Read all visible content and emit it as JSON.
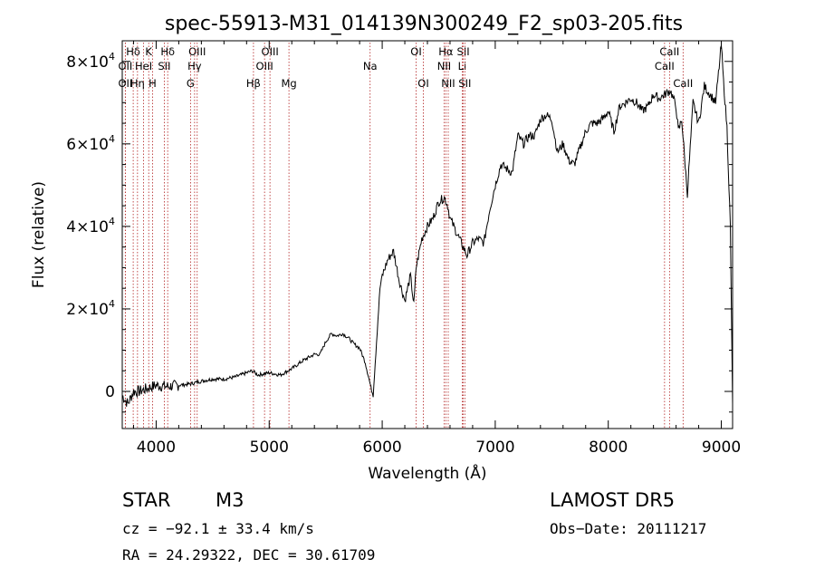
{
  "chart_data": {
    "type": "line",
    "title": "spec-55913-M31_014139N300249_F2_sp03-205.fits",
    "xlabel": "Wavelength (Å)",
    "ylabel": "Flux (relative)",
    "xlim": [
      3700,
      9100
    ],
    "ylim": [
      -9000,
      85000
    ],
    "x_ticks": [
      4000,
      5000,
      6000,
      7000,
      8000,
      9000
    ],
    "x_tick_labels": [
      "4000",
      "5000",
      "6000",
      "7000",
      "8000",
      "9000"
    ],
    "y_ticks": [
      0,
      20000,
      40000,
      60000,
      80000
    ],
    "y_tick_bases": [
      "0",
      "2×10",
      "4×10",
      "6×10",
      "8×10"
    ],
    "y_tick_exponents": [
      "",
      "4",
      "4",
      "4",
      "4"
    ],
    "grid": false,
    "series": [
      {
        "x": [
          3700,
          3750,
          3800,
          3850,
          3900,
          3950,
          4000,
          4100,
          4200,
          4300,
          4400,
          4500,
          4600,
          4700,
          4800,
          4850,
          4900,
          5000,
          5100,
          5200,
          5300,
          5400,
          5450,
          5500,
          5550,
          5600,
          5650,
          5700,
          5750,
          5800,
          5850,
          5900,
          5920,
          5950,
          5980,
          6000,
          6050,
          6100,
          6150,
          6200,
          6250,
          6280,
          6300,
          6350,
          6400,
          6450,
          6500,
          6550,
          6580,
          6600,
          6650,
          6700,
          6750,
          6800,
          6850,
          6900,
          6950,
          7000,
          7050,
          7100,
          7150,
          7200,
          7250,
          7300,
          7350,
          7400,
          7450,
          7500,
          7550,
          7600,
          7650,
          7700,
          7750,
          7800,
          7850,
          7900,
          7950,
          8000,
          8050,
          8100,
          8150,
          8200,
          8250,
          8300,
          8350,
          8400,
          8450,
          8500,
          8550,
          8600,
          8620,
          8650,
          8680,
          8700,
          8750,
          8800,
          8850,
          8900,
          8950,
          9000,
          9020,
          9050,
          9080,
          9100
        ],
        "y": [
          -1000,
          -3000,
          0,
          0,
          500,
          1000,
          1500,
          1200,
          1500,
          1800,
          2500,
          3000,
          3000,
          3500,
          4500,
          5000,
          4000,
          4500,
          4000,
          5500,
          7500,
          9000,
          9000,
          12000,
          14000,
          13500,
          14000,
          13000,
          11500,
          10500,
          7000,
          1000,
          -1000,
          12000,
          25000,
          28000,
          32000,
          34000,
          27000,
          22000,
          28000,
          21000,
          30000,
          37000,
          40000,
          42000,
          46000,
          47000,
          45000,
          42000,
          39000,
          36000,
          33000,
          36000,
          37000,
          36000,
          44000,
          50000,
          55000,
          54000,
          53000,
          62000,
          60000,
          62000,
          62000,
          66000,
          67000,
          66000,
          58000,
          60000,
          56000,
          55000,
          59000,
          63000,
          65000,
          65000,
          66000,
          68000,
          63000,
          69000,
          70000,
          71000,
          70000,
          68000,
          69000,
          72000,
          71000,
          72000,
          73000,
          69000,
          63000,
          66000,
          55000,
          48000,
          70000,
          65000,
          74000,
          72000,
          70000,
          84000,
          75000,
          64000,
          40000,
          -3000
        ]
      }
    ],
    "spectral_lines": [
      {
        "label": "Hδ",
        "wl": 3797,
        "row": 1
      },
      {
        "label": "OII",
        "wl": 3727,
        "row": 2
      },
      {
        "label": "OII",
        "wl": 3727,
        "row": 3
      },
      {
        "label": "K",
        "wl": 3934,
        "row": 1
      },
      {
        "label": "HeI",
        "wl": 3889,
        "row": 2
      },
      {
        "label": "Hη",
        "wl": 3835,
        "row": 3
      },
      {
        "label": "Hδ",
        "wl": 4102,
        "row": 1
      },
      {
        "label": "SII",
        "wl": 4072,
        "row": 2
      },
      {
        "label": "H",
        "wl": 3968,
        "row": 3
      },
      {
        "label": "OIII",
        "wl": 4363,
        "row": 1
      },
      {
        "label": "Hγ",
        "wl": 4340,
        "row": 2
      },
      {
        "label": "G",
        "wl": 4304,
        "row": 3
      },
      {
        "label": "OIII",
        "wl": 5007,
        "row": 1
      },
      {
        "label": "OIII",
        "wl": 4959,
        "row": 2
      },
      {
        "label": "Hβ",
        "wl": 4861,
        "row": 3
      },
      {
        "label": "Mg",
        "wl": 5175,
        "row": 3
      },
      {
        "label": "Na",
        "wl": 5893,
        "row": 2
      },
      {
        "label": "OI",
        "wl": 6300,
        "row": 1
      },
      {
        "label": "OI",
        "wl": 6364,
        "row": 3
      },
      {
        "label": "Hα",
        "wl": 6563,
        "row": 1
      },
      {
        "label": "NII",
        "wl": 6548,
        "row": 2
      },
      {
        "label": "NII",
        "wl": 6584,
        "row": 3
      },
      {
        "label": "SII",
        "wl": 6717,
        "row": 1
      },
      {
        "label": "Li",
        "wl": 6708,
        "row": 2
      },
      {
        "label": "SII",
        "wl": 6731,
        "row": 3
      },
      {
        "label": "CaII",
        "wl": 8542,
        "row": 1
      },
      {
        "label": "CaII",
        "wl": 8498,
        "row": 2
      },
      {
        "label": "CaII",
        "wl": 8662,
        "row": 3
      }
    ],
    "line_color": "#000000",
    "marker_color": "#b22222"
  },
  "info": {
    "class": "STAR",
    "subclass": "M3",
    "survey": "LAMOST  DR5",
    "cz": "cz = −92.1 ± 33.4 km/s",
    "obs_date": "Obs−Date: 20111217",
    "coords": "RA =  24.29322, DEC =  30.61709"
  }
}
